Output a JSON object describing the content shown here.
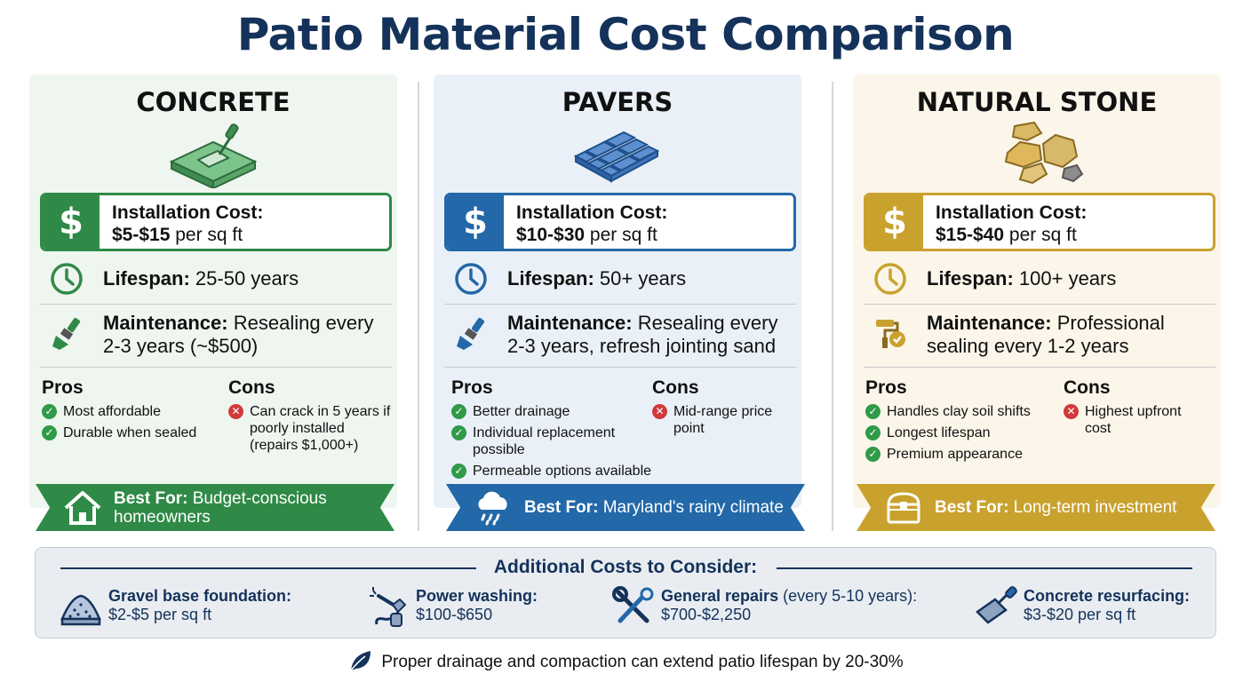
{
  "title": "Patio Material Cost Comparison",
  "cost_label": "Installation Cost:",
  "per_unit": "per sq ft",
  "lifespan_label": "Lifespan:",
  "maintenance_label": "Maintenance:",
  "pros_label": "Pros",
  "cons_label": "Cons",
  "best_for_label": "Best For:",
  "materials": [
    {
      "name": "CONCRETE",
      "accent": "#2f8a47",
      "background": "#eef6ef",
      "cost_range": "$5-$15",
      "lifespan": "25-50 years",
      "maintenance": "Resealing every 2-3 years (~$500)",
      "pros": [
        "Most affordable",
        "Durable when sealed"
      ],
      "cons": [
        "Can crack in 5 years if poorly installed (repairs $1,000+)"
      ],
      "best_for": "Budget-conscious homeowners",
      "material_icon": "concrete-slab-trowel-icon",
      "maintenance_icon": "paintbrush-icon",
      "best_for_icon": "house-icon"
    },
    {
      "name": "PAVERS",
      "accent": "#2368a8",
      "background": "#eaf0f8",
      "cost_range": "$10-$30",
      "lifespan": "50+ years",
      "maintenance": "Resealing every 2-3 years, refresh jointing sand",
      "pros": [
        "Better drainage",
        "Individual replacement possible",
        "Permeable options available"
      ],
      "cons": [
        "Mid-range price point"
      ],
      "best_for": "Maryland's rainy climate",
      "material_icon": "paver-bricks-icon",
      "maintenance_icon": "paintbrush-icon",
      "best_for_icon": "rain-cloud-icon"
    },
    {
      "name": "NATURAL STONE",
      "accent": "#c9a22e",
      "background": "#fbf6e9",
      "cost_range": "$15-$40",
      "lifespan": "100+ years",
      "maintenance": "Professional sealing every 1-2 years",
      "pros": [
        "Handles clay soil shifts",
        "Longest lifespan",
        "Premium appearance"
      ],
      "cons": [
        "Highest upfront cost"
      ],
      "best_for": "Long-term investment",
      "material_icon": "flagstone-icon",
      "maintenance_icon": "sealer-roller-badge-icon",
      "best_for_icon": "treasure-chest-icon"
    }
  ],
  "additional": {
    "title": "Additional Costs to Consider:",
    "items": [
      {
        "label": "Gravel base foundation:",
        "note": "",
        "value": "$2-$5 per sq ft",
        "icon": "gravel-pile-icon"
      },
      {
        "label": "Power washing:",
        "note": "",
        "value": "$100-$650",
        "icon": "pressure-washer-icon"
      },
      {
        "label": "General repairs",
        "note": "(every 5-10 years):",
        "value": "$700-$2,250",
        "icon": "wrench-screwdriver-icon"
      },
      {
        "label": "Concrete resurfacing:",
        "note": "",
        "value": "$3-$20 per sq ft",
        "icon": "trowel-icon"
      }
    ]
  },
  "footer": {
    "text": "Proper drainage and compaction can extend patio lifespan by 20-30%",
    "icon": "leaf-icon"
  }
}
